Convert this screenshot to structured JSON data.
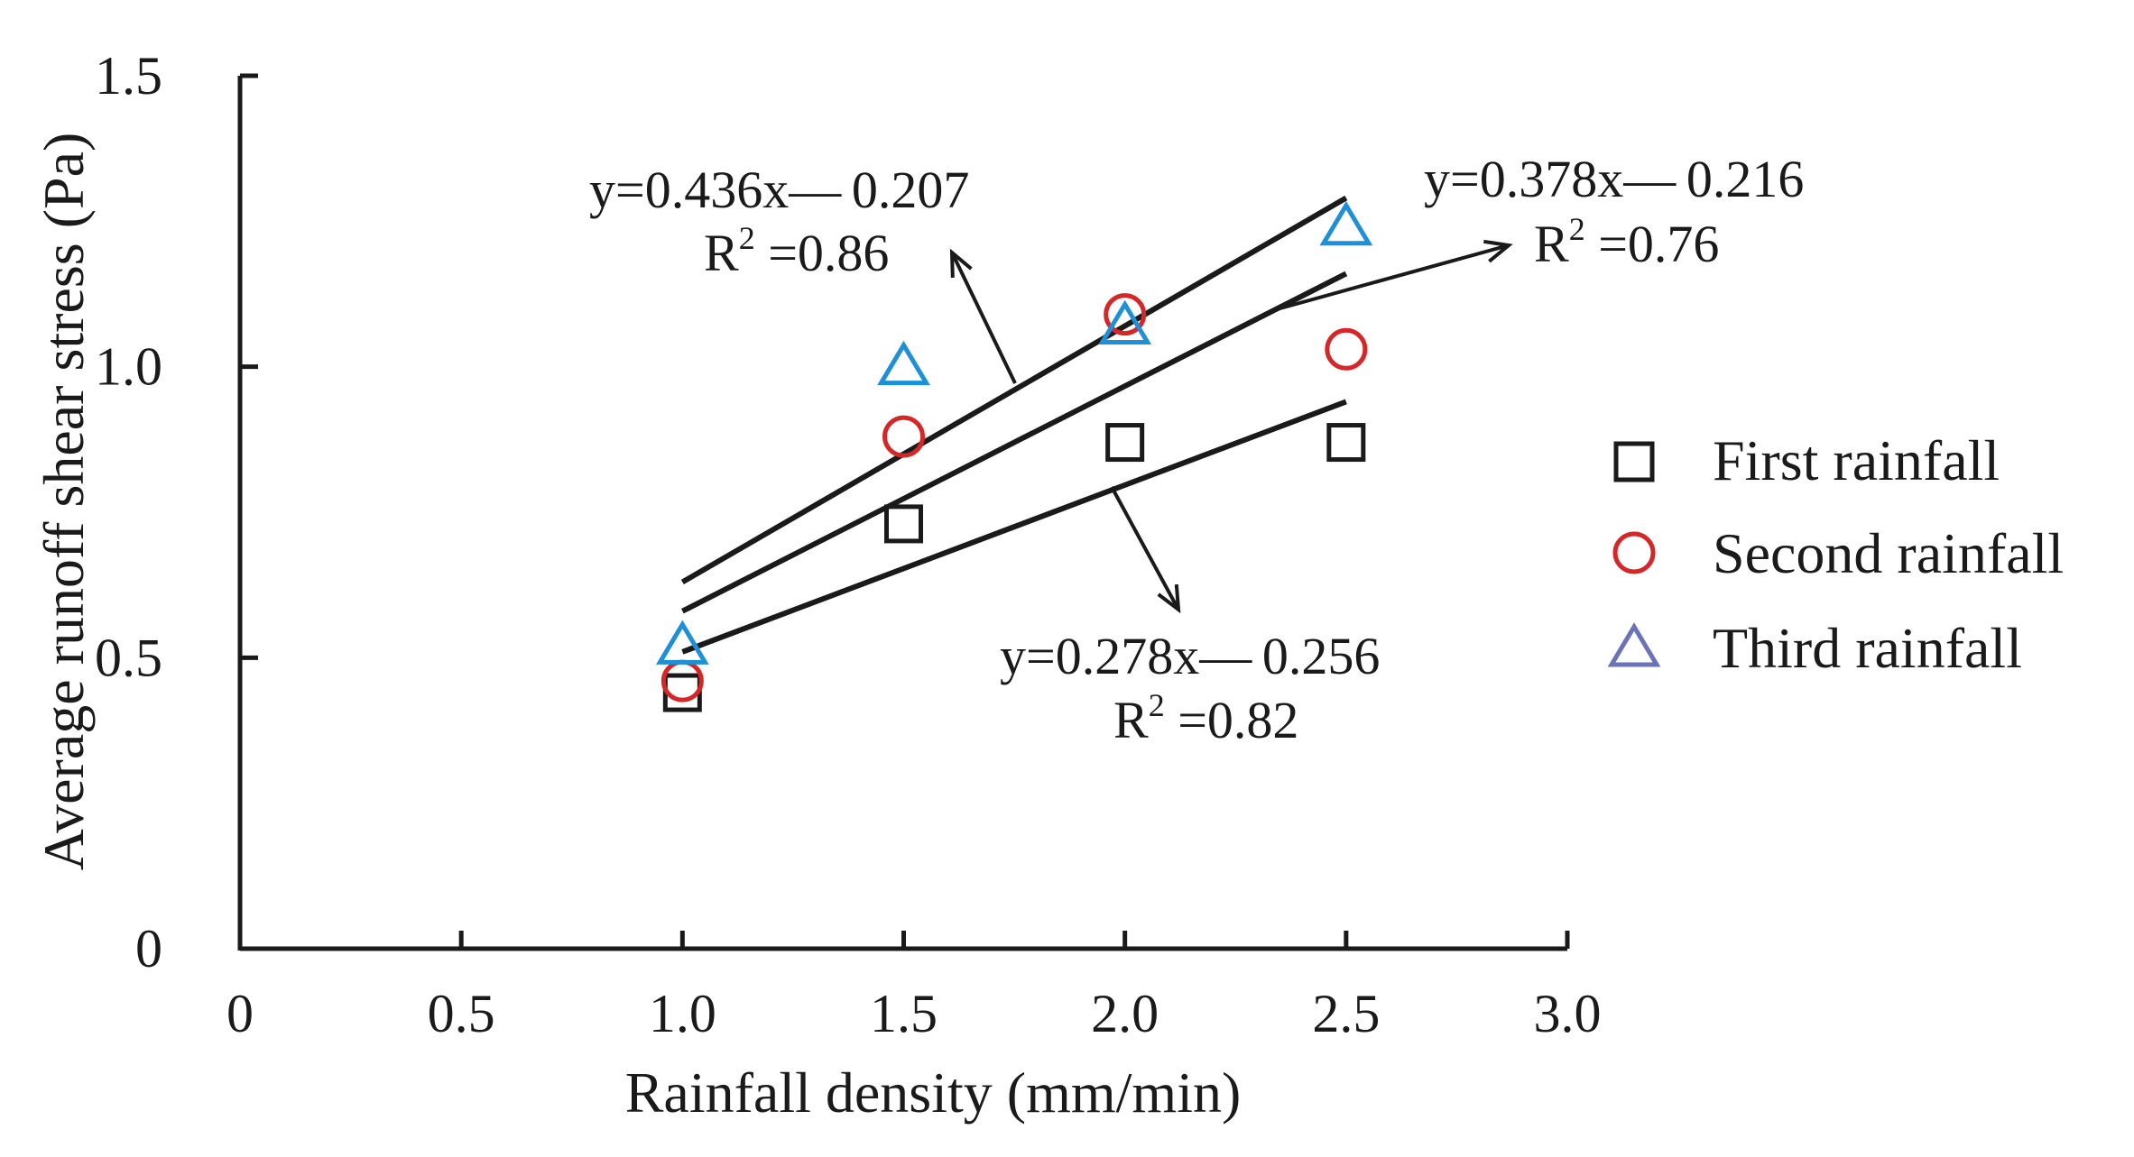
{
  "chart_data": {
    "type": "scatter",
    "title": "",
    "xlabel": "Rainfall density (mm/min)",
    "ylabel": "Average runoff shear stress (Pa)",
    "xlim": [
      0,
      3.0
    ],
    "ylim": [
      0,
      1.5
    ],
    "x_ticks": [
      "0",
      "0.5",
      "1.0",
      "1.5",
      "2.0",
      "2.5",
      "3.0"
    ],
    "y_ticks": [
      "0",
      "0.5",
      "1.0",
      "1.5"
    ],
    "x_tick_values": [
      0,
      0.5,
      1.0,
      1.5,
      2.0,
      2.5,
      3.0
    ],
    "y_tick_values": [
      0,
      0.5,
      1.0,
      1.5
    ],
    "legend_position": "right",
    "series": [
      {
        "name": "First rainfall",
        "marker": "square",
        "color": "#1a1a1a",
        "x": [
          1.0,
          1.5,
          2.0,
          2.5
        ],
        "y": [
          0.44,
          0.73,
          0.87,
          0.87
        ],
        "fit": {
          "x_range": [
            1.0,
            2.5
          ],
          "y_range": [
            0.51,
            0.94
          ]
        }
      },
      {
        "name": "Second rainfall",
        "marker": "circle",
        "color": "#d62728",
        "x": [
          1.0,
          1.5,
          2.0,
          2.5
        ],
        "y": [
          0.46,
          0.88,
          1.09,
          1.03
        ],
        "fit": {
          "x_range": [
            1.0,
            2.5
          ],
          "y_range": [
            0.58,
            1.16
          ]
        }
      },
      {
        "name": "Third rainfall",
        "marker": "triangle",
        "color": "#1f8fd6",
        "legend_color": "#6a73b8",
        "x": [
          1.0,
          1.5,
          2.0,
          2.5
        ],
        "y": [
          0.52,
          1.0,
          1.07,
          1.24
        ],
        "fit": {
          "x_range": [
            1.0,
            2.5
          ],
          "y_range": [
            0.63,
            1.29
          ]
        }
      }
    ],
    "annotations": [
      {
        "equation": "y=0.436x— 0.207",
        "r2_prefix": "R",
        "r2_sup": "2",
        "r2_value": " =0.86"
      },
      {
        "equation": "y=0.378x— 0.216",
        "r2_prefix": "R",
        "r2_sup": "2",
        "r2_value": " =0.76"
      },
      {
        "equation": "y=0.278x— 0.256",
        "r2_prefix": "R",
        "r2_sup": "2",
        "r2_value": " =0.82"
      }
    ]
  }
}
